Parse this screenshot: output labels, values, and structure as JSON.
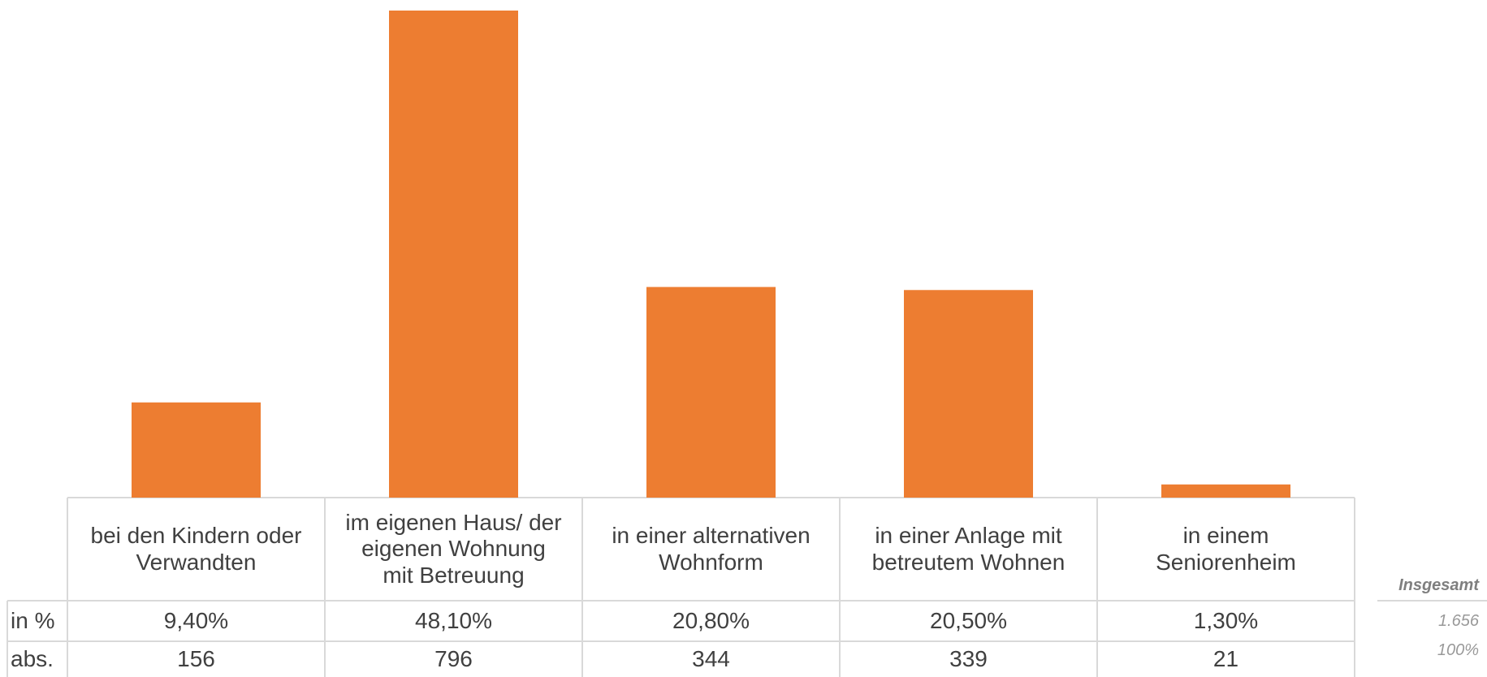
{
  "chart_data": {
    "type": "bar",
    "categories": [
      "bei den Kindern oder\nVerwandten",
      "im eigenen Haus/ der\neigenen Wohnung\nmit Betreuung",
      "in einer alternativen\nWohnform",
      "in einer Anlage mit\nbetreutem Wohnen",
      "in einem\nSeniorenheim"
    ],
    "values": [
      9.4,
      48.1,
      20.8,
      20.5,
      1.3
    ],
    "value_labels": [
      "9,40%",
      "48,10%",
      "20,80%",
      "20,50%",
      "1,30%"
    ],
    "color": "#ed7d31",
    "row_labels": [
      "in %",
      "abs."
    ],
    "abs_values": [
      156,
      796,
      344,
      339,
      21
    ],
    "total": {
      "title": "Insgesamt",
      "values": [
        "1.656",
        "100%"
      ]
    }
  }
}
